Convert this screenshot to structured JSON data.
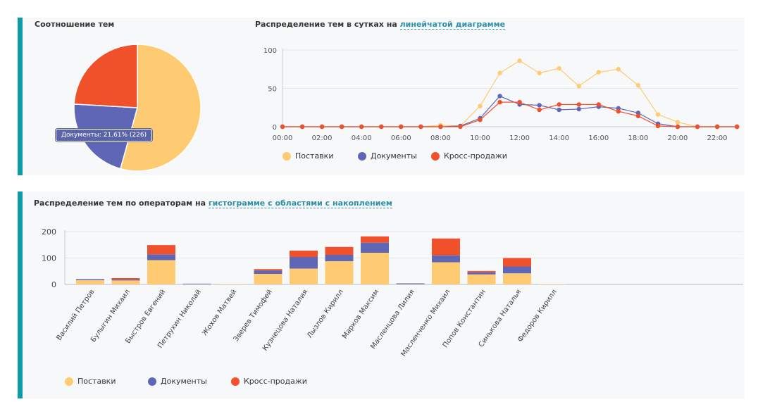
{
  "colors": {
    "accent": "#0e9aa7",
    "supplies": "#fecb73",
    "documents": "#5f66b5",
    "cross": "#f0502a",
    "link": "#2e8fa8"
  },
  "top_left": {
    "title": "Соотношение тем",
    "tooltip": "Документы: 21.61% (226)"
  },
  "top_right": {
    "title_prefix": "Распределение тем в сутках на",
    "title_link": "линейчатой диаграмме"
  },
  "bottom": {
    "title_prefix": "Распределение тем по операторам на",
    "title_link": "гистограмме с областями с накоплением"
  },
  "legend": {
    "supplies": "Поставки",
    "documents": "Документы",
    "cross": "Кросс-продажи"
  },
  "chart_data": [
    {
      "type": "pie",
      "title": "Соотношение тем",
      "slices": [
        {
          "name": "Поставки",
          "value": 568,
          "percent": 54.3
        },
        {
          "name": "Документы",
          "value": 226,
          "percent": 21.61
        },
        {
          "name": "Кросс-продажи",
          "value": 252,
          "percent": 24.09
        }
      ]
    },
    {
      "type": "line",
      "title": "Распределение тем в сутках",
      "x": [
        0,
        1,
        2,
        3,
        4,
        5,
        6,
        7,
        8,
        9,
        10,
        11,
        12,
        13,
        14,
        15,
        16,
        17,
        18,
        19,
        20,
        21,
        22,
        23
      ],
      "x_tick_labels": [
        "00:00",
        "02:00",
        "04:00",
        "06:00",
        "08:00",
        "10:00",
        "12:00",
        "14:00",
        "16:00",
        "18:00",
        "20:00",
        "22:00"
      ],
      "y_ticks": [
        0,
        50,
        100
      ],
      "ylim": [
        0,
        100
      ],
      "series": [
        {
          "name": "Поставки",
          "values": [
            0,
            0,
            0,
            0,
            0,
            0,
            0,
            0,
            2,
            1,
            27,
            70,
            86,
            70,
            76,
            53,
            71,
            75,
            54,
            16,
            6,
            0,
            0,
            0
          ]
        },
        {
          "name": "Документы",
          "values": [
            0,
            0,
            0,
            0,
            0,
            0,
            0,
            0,
            0,
            1,
            11,
            40,
            29,
            28,
            22,
            23,
            26,
            24,
            18,
            4,
            0,
            0,
            0,
            0
          ]
        },
        {
          "name": "Кросс-продажи",
          "values": [
            0,
            0,
            0,
            0,
            0,
            0,
            0,
            0,
            0,
            0,
            9,
            32,
            32,
            22,
            29,
            29,
            29,
            20,
            14,
            1,
            0,
            0,
            0,
            0
          ]
        }
      ]
    },
    {
      "type": "bar",
      "stacked": true,
      "title": "Распределение тем по операторам",
      "categories": [
        "Василий Петров",
        "Булыгин Михаил",
        "Быстров Евгений",
        "Петрухин Николай",
        "Жохов Матвей",
        "Зверев Тимофей",
        "Кузнецова Наталия",
        "Лызлов Кирилл",
        "Марков Максим",
        "Масленцова Лилия",
        "Масленченко Михаил",
        "Попов Константин",
        "Синькова Наталья",
        "Федоров Кирилл"
      ],
      "y_ticks": [
        0,
        100,
        200
      ],
      "ylim": [
        0,
        200
      ],
      "series": [
        {
          "name": "Поставки",
          "values": [
            16,
            15,
            92,
            1,
            1,
            40,
            60,
            88,
            120,
            1,
            84,
            38,
            42,
            1
          ]
        },
        {
          "name": "Документы",
          "values": [
            4,
            4,
            22,
            2,
            0,
            13,
            44,
            24,
            38,
            3,
            26,
            8,
            26,
            0
          ]
        },
        {
          "name": "Кросс-продажи",
          "values": [
            0,
            5,
            35,
            0,
            0,
            5,
            24,
            30,
            24,
            0,
            64,
            5,
            32,
            0
          ]
        }
      ]
    }
  ]
}
